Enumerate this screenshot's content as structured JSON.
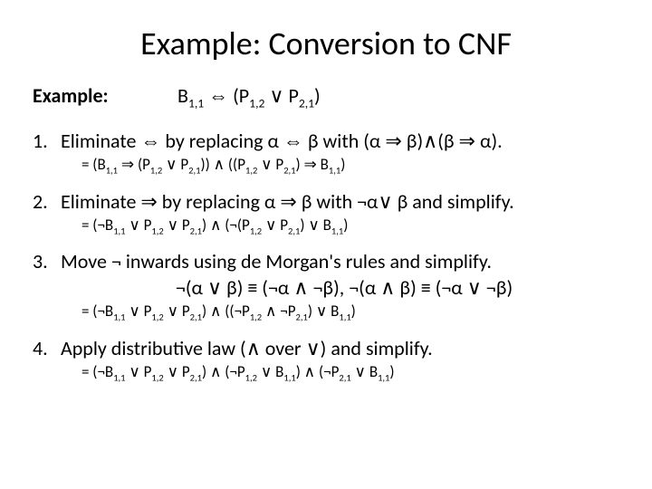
{
  "title": "Example: Conversion to CNF",
  "example_label": "Example:",
  "example_formula": "B<sub>1,1</sub> ⇔ (P<sub>1,2</sub> ∨ P<sub>2,1</sub>)",
  "steps": [
    {
      "num": "1.",
      "text": "Eliminate ⇔ by replacing α ⇔ β with (α ⇒ β)∧(β ⇒ α).",
      "result": "= (B<sub>1,1</sub> ⇒ (P<sub>1,2</sub> ∨ P<sub>2,1</sub>)) ∧ ((P<sub>1,2</sub> ∨ P<sub>2,1</sub>) ⇒ B<sub>1,1</sub>)"
    },
    {
      "num": "2.",
      "text": "Eliminate ⇒ by replacing α ⇒ β with ¬α∨ β and simplify.",
      "result": "= (¬B<sub>1,1</sub> ∨ P<sub>1,2</sub> ∨ P<sub>2,1</sub>) ∧ (¬(P<sub>1,2</sub> ∨ P<sub>2,1</sub>) ∨ B<sub>1,1</sub>)"
    },
    {
      "num": "3.",
      "text": "Move ¬ inwards using de Morgan's rules and simplify.",
      "rule": "¬(α ∨ β) ≡ (¬α ∧ ¬β),  ¬(α ∧ β) ≡ (¬α ∨ ¬β)",
      "result": "= (¬B<sub>1,1</sub> ∨ P<sub>1,2</sub> ∨ P<sub>2,1</sub>) ∧ ((¬P<sub>1,2</sub> ∧ ¬P<sub>2,1</sub>) ∨ B<sub>1,1</sub>)"
    },
    {
      "num": "4.",
      "text": "Apply distributive law (∧ over ∨) and simplify.",
      "result": "= (¬B<sub>1,1</sub> ∨ P<sub>1,2</sub> ∨ P<sub>2,1</sub>) ∧ (¬P<sub>1,2</sub> ∨ B<sub>1,1</sub>) ∧ (¬P<sub>2,1</sub> ∨ B<sub>1,1</sub>)"
    }
  ],
  "colors": {
    "text": "#000000",
    "background": "#ffffff"
  },
  "fonts": {
    "title_size": 36,
    "body_size": 22,
    "result_size": 17
  }
}
